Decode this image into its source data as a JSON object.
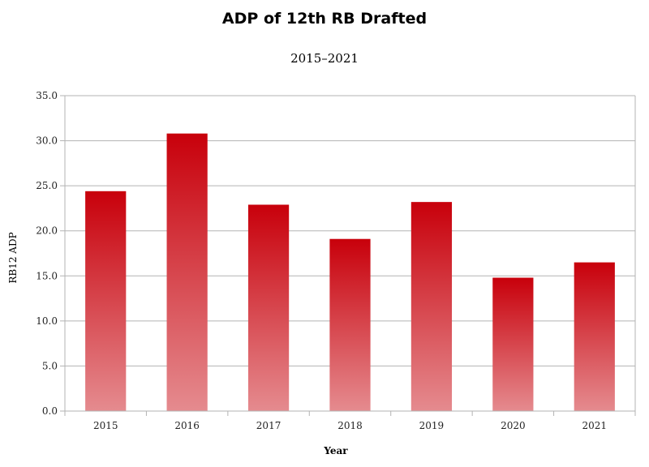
{
  "colors": {
    "bar_top": "#c8000b",
    "bar_bottom": "#e58b8f",
    "grid": "#b3b3b3",
    "axis": "#b3b3b3"
  },
  "chart_data": {
    "type": "bar",
    "title": "ADP of 12th RB Drafted",
    "subtitle": "2015–2021",
    "xlabel": "Year",
    "ylabel": "RB12 ADP",
    "categories": [
      "2015",
      "2016",
      "2017",
      "2018",
      "2019",
      "2020",
      "2021"
    ],
    "values": [
      24.4,
      30.8,
      22.9,
      19.1,
      23.2,
      14.8,
      16.5
    ],
    "ylim": [
      0,
      35
    ],
    "ytick_step": 5,
    "ytick_labels": [
      "0.0",
      "5.0",
      "10.0",
      "15.0",
      "20.0",
      "25.0",
      "30.0",
      "35.0"
    ],
    "grid": true,
    "legend": "none"
  }
}
